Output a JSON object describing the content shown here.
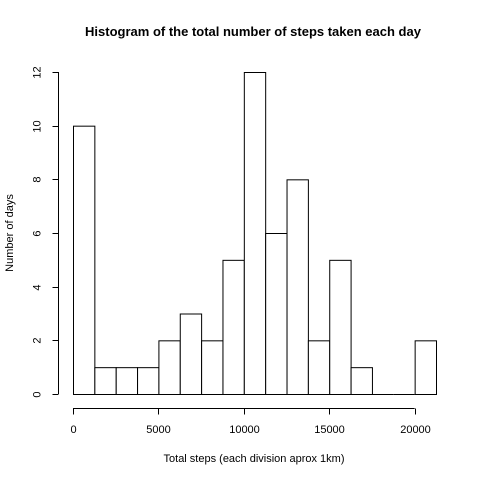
{
  "chart_data": {
    "type": "bar",
    "title": "Histogram of the total number of steps taken each day",
    "xlabel": "Total steps (each division aprox 1km)",
    "ylabel": "Number of days",
    "bin_width": 1250,
    "bin_start": 0,
    "values": [
      10,
      1,
      1,
      1,
      2,
      3,
      2,
      5,
      12,
      6,
      8,
      2,
      5,
      1,
      0,
      0,
      2
    ],
    "xlim": [
      0,
      21250
    ],
    "ylim": [
      0,
      12
    ],
    "x_ticks": [
      0,
      5000,
      10000,
      15000,
      20000
    ],
    "x_tick_labels": [
      "0",
      "5000",
      "10000",
      "15000",
      "20000"
    ],
    "y_ticks": [
      0,
      2,
      4,
      6,
      8,
      10,
      12
    ],
    "y_tick_labels": [
      "0",
      "2",
      "4",
      "6",
      "8",
      "10",
      "12"
    ],
    "grid": false
  }
}
